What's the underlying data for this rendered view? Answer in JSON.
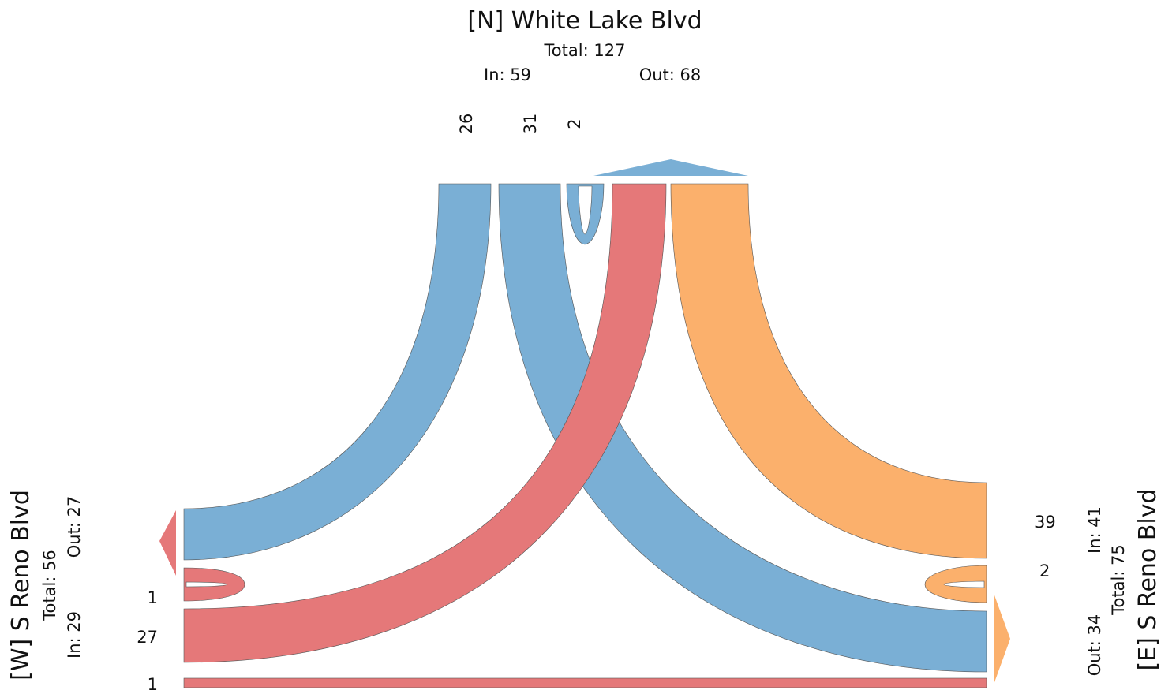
{
  "north": {
    "title": "[N] White Lake Blvd",
    "total": "Total: 127",
    "in": "In: 59",
    "out": "Out: 68",
    "flow_values": [
      "26",
      "31",
      "2"
    ]
  },
  "west": {
    "title": "[W] S Reno Blvd",
    "total": "Total: 56",
    "in": "In: 29",
    "out": "Out: 27",
    "flow_values": [
      "1",
      "27",
      "1"
    ]
  },
  "east": {
    "title": "[E] S Reno Blvd",
    "total": "Total: 75",
    "in": "In: 41",
    "out": "Out: 34",
    "flow_values": [
      "39",
      "2"
    ]
  },
  "colors": {
    "north": "#7aafd5",
    "west": "#e57879",
    "east": "#fbb06c"
  },
  "flows": [
    {
      "from": "N",
      "to": "W",
      "value": 26
    },
    {
      "from": "N",
      "to": "E",
      "value": 31
    },
    {
      "from": "N",
      "to": "N",
      "value": 2
    },
    {
      "from": "W",
      "to": "W",
      "value": 1
    },
    {
      "from": "W",
      "to": "N",
      "value": 27
    },
    {
      "from": "W",
      "to": "E",
      "value": 1
    },
    {
      "from": "E",
      "to": "N",
      "value": 39
    },
    {
      "from": "E",
      "to": "E",
      "value": 2
    }
  ]
}
